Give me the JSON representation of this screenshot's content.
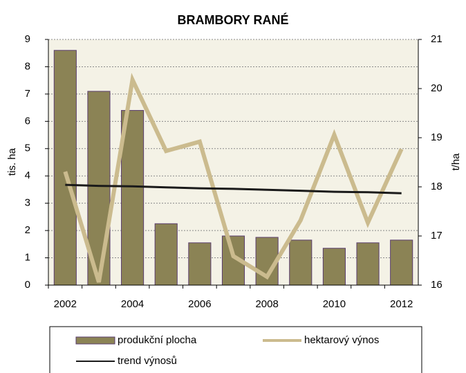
{
  "chart_data": {
    "type": "bar",
    "title": "BRAMBORY RANÉ",
    "categories": [
      "2002",
      null,
      "2004",
      null,
      "2006",
      null,
      "2008",
      null,
      "2010",
      null,
      "2012"
    ],
    "ylabel": "tis. ha",
    "y2label": "t/ha",
    "ylim": [
      0,
      9
    ],
    "yticks": [
      0,
      1,
      2,
      3,
      4,
      5,
      6,
      7,
      8,
      9
    ],
    "y2lim": [
      16,
      21
    ],
    "y2ticks": [
      16,
      17,
      18,
      19,
      20,
      21
    ],
    "grid": true,
    "legend": "bottom",
    "series": [
      {
        "name": "produkční plocha",
        "type": "bar",
        "color": "#8b8355",
        "values": [
          8.6,
          7.1,
          6.4,
          2.25,
          1.55,
          1.8,
          1.75,
          1.65,
          1.35,
          1.55,
          1.65
        ]
      },
      {
        "name": "hektarový výnos",
        "type": "line",
        "axis": "y2",
        "color": "#cbbb8e",
        "values": [
          18.31,
          16.06,
          20.18,
          18.73,
          18.92,
          16.59,
          16.17,
          17.32,
          19.06,
          17.27,
          18.77
        ]
      },
      {
        "name": "trend výnosů",
        "type": "line",
        "axis": "y2",
        "color": "#1a1a1a",
        "values": [
          18.04,
          18.02,
          18.01,
          17.99,
          17.97,
          17.96,
          17.94,
          17.92,
          17.9,
          17.89,
          17.87
        ]
      }
    ]
  }
}
